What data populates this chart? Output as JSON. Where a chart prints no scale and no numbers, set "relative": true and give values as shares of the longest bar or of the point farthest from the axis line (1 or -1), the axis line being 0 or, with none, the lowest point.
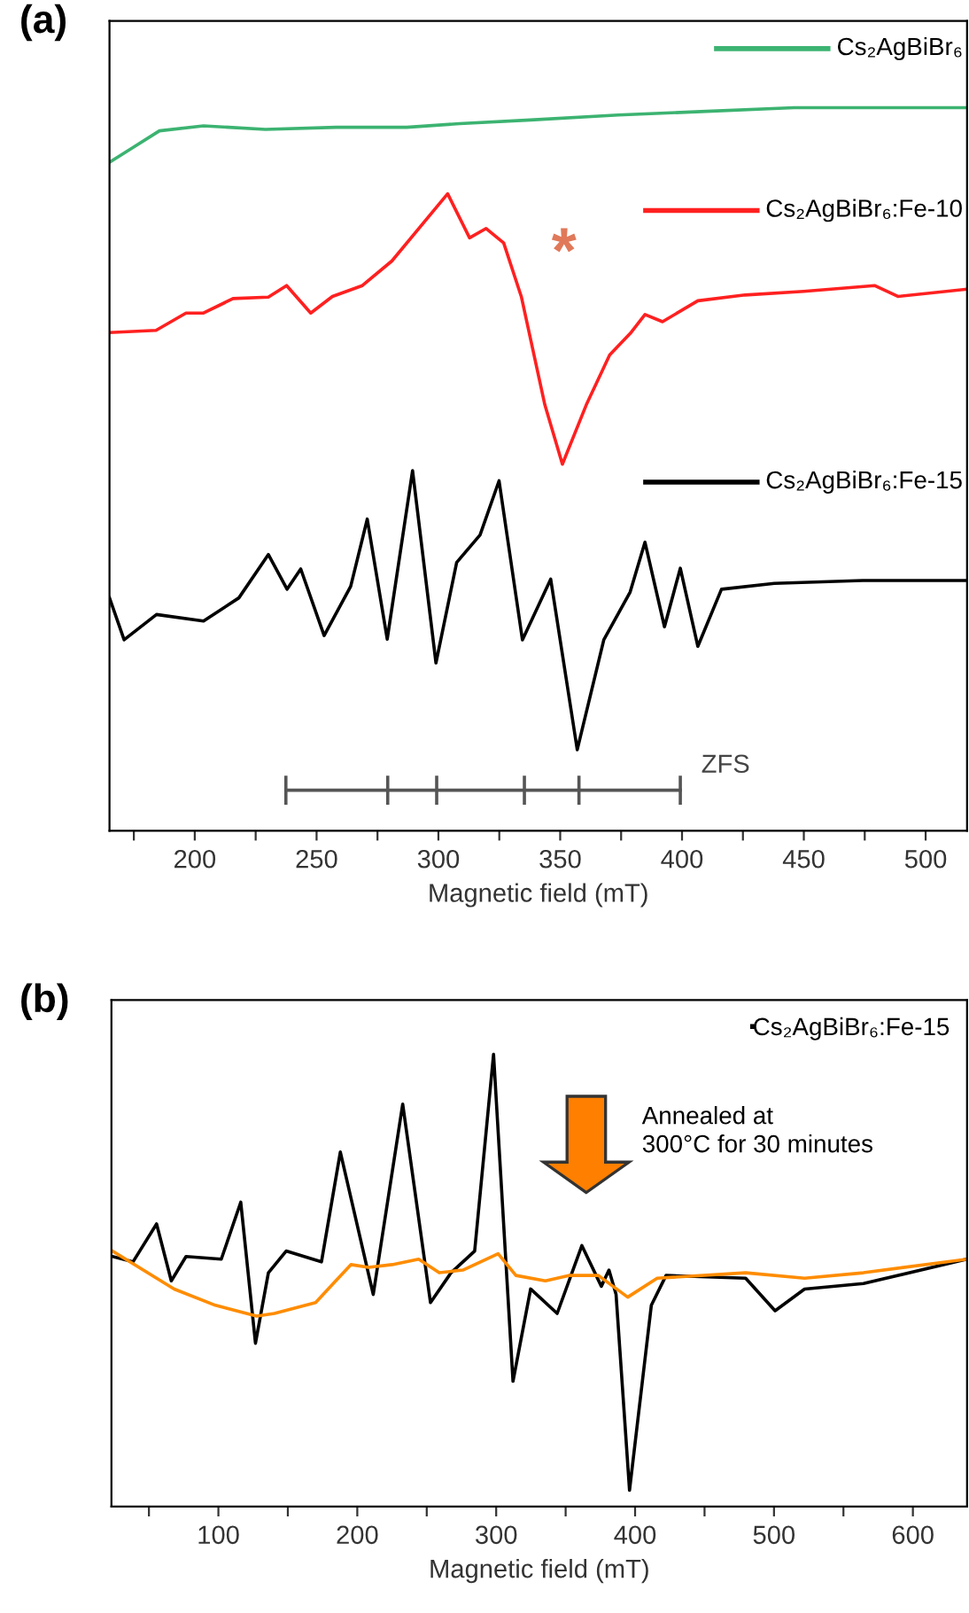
{
  "chart_data": [
    {
      "type": "line",
      "title": "(a)",
      "xlabel": "Magnetic field (mT)",
      "relative": true,
      "tick_labels": "x",
      "grid": false,
      "xlim": [
        165,
        517
      ],
      "legend": "right",
      "xticks": [
        {
          "value": 175,
          "label": null
        },
        200,
        {
          "value": 225,
          "label": null
        },
        250,
        {
          "value": 275,
          "label": null
        },
        300,
        {
          "value": 325,
          "label": null
        },
        350,
        {
          "value": 375,
          "label": null
        },
        400,
        {
          "value": 425,
          "label": null
        },
        450,
        {
          "value": 475,
          "label": null
        },
        500
      ],
      "series": [
        {
          "name": "Cs₂AgBiBr₆",
          "color": "#3cb371",
          "x": [
            165.2,
            174.6,
            185.5,
            203.6,
            229,
            258,
            287,
            308.7,
            337.7,
            373.9,
            410,
            446,
            482.6,
            516.7
          ],
          "values": [
            0.925,
            0.945,
            0.968,
            0.975,
            0.97,
            0.973,
            0.973,
            0.978,
            0.983,
            0.99,
            0.995,
            1.0,
            1.0,
            1.0
          ]
        },
        {
          "name": "Cs₂AgBiBr₆:Fe-10",
          "color": "#ff2020",
          "x": [
            165,
            184.1,
            196.4,
            203.6,
            215.7,
            230.2,
            237.7,
            247.6,
            256.5,
            268.8,
            280.9,
            303.8,
            312.8,
            319.6,
            326.8,
            334.1,
            343.7,
            350.9,
            360.7,
            370.3,
            378.8,
            384.8,
            392,
            406.5,
            425.9,
            450,
            479,
            488.6,
            516.7
          ],
          "values": [
            0.689,
            0.692,
            0.716,
            0.716,
            0.736,
            0.738,
            0.754,
            0.716,
            0.739,
            0.754,
            0.788,
            0.881,
            0.82,
            0.833,
            0.813,
            0.738,
            0.589,
            0.507,
            0.589,
            0.658,
            0.688,
            0.714,
            0.704,
            0.733,
            0.741,
            0.746,
            0.754,
            0.739,
            0.749
          ]
        },
        {
          "name": "Cs₂AgBiBr₆:Fe-15",
          "color": "#000000",
          "x": [
            165.0,
            171.0,
            184.3,
            203.6,
            218.1,
            230.2,
            237.9,
            243.5,
            253.1,
            264.0,
            270.8,
            279.0,
            289.4,
            299.0,
            307.5,
            317.1,
            324.9,
            334.5,
            346.1,
            357.0,
            367.9,
            378.7,
            384.8,
            392.8,
            399.3,
            406.5,
            416.2,
            437.9,
            474.2,
            516.7
          ],
          "values": [
            0.322,
            0.264,
            0.299,
            0.29,
            0.322,
            0.382,
            0.334,
            0.362,
            0.27,
            0.338,
            0.431,
            0.265,
            0.498,
            0.232,
            0.371,
            0.409,
            0.484,
            0.264,
            0.348,
            0.112,
            0.264,
            0.33,
            0.399,
            0.282,
            0.363,
            0.255,
            0.334,
            0.342,
            0.346,
            0.346
          ]
        },
        {
          "color": "#555555",
          "marker": "none",
          "x": [
            237.4,
            279.2,
            299.3,
            335.3,
            357.7,
            399.3
          ],
          "values": [
            0.056,
            0.056,
            0.056,
            0.056,
            0.056,
            0.056
          ]
        }
      ],
      "annotations": [
        "*",
        "ZFS"
      ]
    },
    {
      "type": "line",
      "title": "(b)",
      "xlabel": "Magnetic field (mT)",
      "relative": true,
      "tick_labels": "x",
      "grid": false,
      "legend": "top right",
      "xlim": [
        23,
        639
      ],
      "xticks": [
        {
          "value": 50,
          "label": null
        },
        100,
        {
          "value": 150,
          "label": null
        },
        200,
        {
          "value": 250,
          "label": null
        },
        300,
        {
          "value": 350,
          "label": null
        },
        400,
        {
          "value": 450,
          "label": null
        },
        500,
        {
          "value": 550,
          "label": null
        },
        600
      ],
      "series": [
        {
          "name": "Cs₂AgBiBr₆:Fe-15",
          "color": "#000000",
          "x": [
            23.7,
            38.5,
            55.5,
            66.1,
            76.7,
            102.1,
            116.1,
            126.7,
            136.0,
            148.8,
            174.2,
            187.8,
            211.5,
            232.7,
            252.7,
            267.5,
            284.5,
            298.1,
            312.1,
            324.8,
            343.9,
            361.7,
            375.7,
            381.2,
            386.3,
            396.0,
            411.7,
            422.3,
            479.6,
            500.8,
            522.0,
            564.4,
            639.0
          ],
          "values": [
            0.553,
            0.541,
            0.625,
            0.499,
            0.553,
            0.547,
            0.673,
            0.361,
            0.517,
            0.565,
            0.541,
            0.784,
            0.469,
            0.89,
            0.451,
            0.517,
            0.565,
            1.0,
            0.277,
            0.481,
            0.427,
            0.577,
            0.487,
            0.523,
            0.469,
            0.036,
            0.445,
            0.511,
            0.505,
            0.433,
            0.481,
            0.493,
            0.547
          ]
        },
        {
          "color": "#ff8c00",
          "x": [
            23.7,
            68.2,
            97.9,
            127.6,
            140.3,
            170.0,
            182.7,
            195.4,
            208.1,
            225.1,
            244.2,
            259.0,
            276.0,
            301.4,
            314.2,
            335.4,
            352.3,
            373.5,
            394.7,
            415.9,
            479.6,
            522.0,
            564.4,
            639.0
          ],
          "values": [
            0.565,
            0.481,
            0.445,
            0.421,
            0.427,
            0.451,
            0.493,
            0.535,
            0.529,
            0.535,
            0.547,
            0.517,
            0.523,
            0.559,
            0.511,
            0.499,
            0.511,
            0.511,
            0.463,
            0.505,
            0.517,
            0.505,
            0.517,
            0.547
          ]
        }
      ],
      "annotations": [
        "Annealed at\n300°C for 30 minutes"
      ]
    }
  ]
}
